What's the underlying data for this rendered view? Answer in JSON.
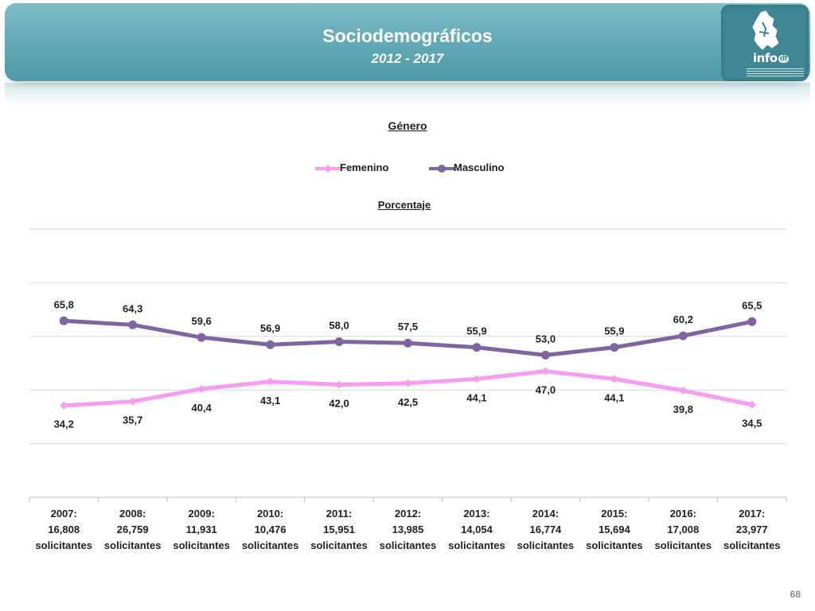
{
  "header": {
    "title": "Sociodemográficos",
    "subtitle": "2012 - 2017",
    "logo_text": "info",
    "logo_badge": "df"
  },
  "page_number": "68",
  "colors": {
    "banner": "#5ea6b2",
    "femenino": "#f79cf2",
    "masculino": "#8064a2"
  },
  "chart_data": {
    "type": "line",
    "title": "Género",
    "subtitle": "Porcentaje",
    "legend_position": "top",
    "grid": true,
    "ylim": [
      0,
      100
    ],
    "categories": [
      [
        "2007:",
        "16,808",
        "solicitantes"
      ],
      [
        "2008:",
        "26,759",
        "solicitantes"
      ],
      [
        "2009:",
        "11,931",
        "solicitantes"
      ],
      [
        "2010:",
        "10,476",
        "solicitantes"
      ],
      [
        "2011:",
        "15,951",
        "solicitantes"
      ],
      [
        "2012:",
        "13,985",
        "solicitantes"
      ],
      [
        "2013:",
        "14,054",
        "solicitantes"
      ],
      [
        "2014:",
        "16,774",
        "solicitantes"
      ],
      [
        "2015:",
        "15,694",
        "solicitantes"
      ],
      [
        "2016:",
        "17,008",
        "solicitantes"
      ],
      [
        "2017:",
        "23,977",
        "solicitantes"
      ]
    ],
    "series": [
      {
        "name": "Femenino",
        "color": "#f79cf2",
        "marker": "diamond",
        "values": [
          34.2,
          35.7,
          40.4,
          43.1,
          42.0,
          42.5,
          44.1,
          47.0,
          44.1,
          39.8,
          34.5
        ],
        "labels": [
          "34,2",
          "35,7",
          "40,4",
          "43,1",
          "42,0",
          "42,5",
          "44,1",
          "47,0",
          "44,1",
          "39,8",
          "34,5"
        ]
      },
      {
        "name": "Masculino",
        "color": "#8064a2",
        "marker": "circle",
        "values": [
          65.8,
          64.3,
          59.6,
          56.9,
          58.0,
          57.5,
          55.9,
          53.0,
          55.9,
          60.2,
          65.5
        ],
        "labels": [
          "65,8",
          "64,3",
          "59,6",
          "56,9",
          "58,0",
          "57,5",
          "55,9",
          "53,0",
          "55,9",
          "60,2",
          "65,5"
        ]
      }
    ]
  }
}
